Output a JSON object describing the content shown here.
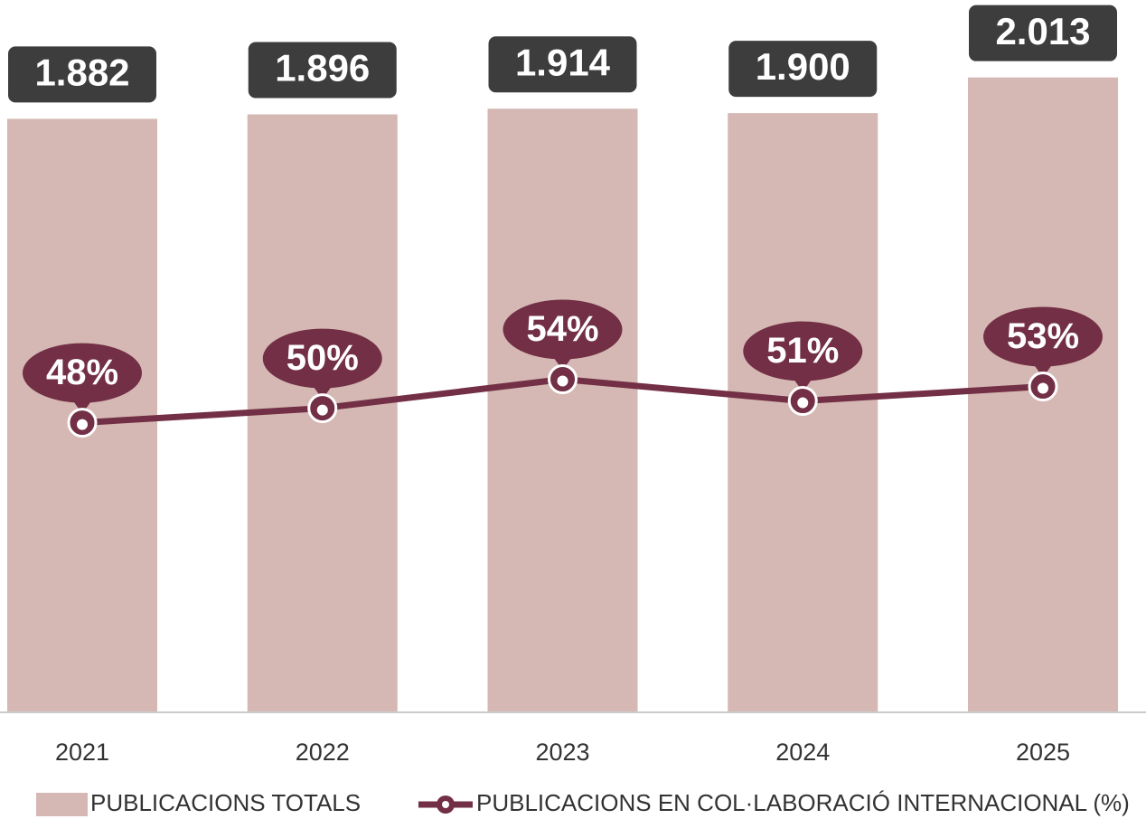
{
  "chart_data": {
    "type": "bar+line",
    "categories": [
      "2021",
      "2022",
      "2023",
      "2024",
      "2025"
    ],
    "ylim": [
      0,
      2250
    ],
    "y2lim": [
      8,
      106
    ],
    "series": [
      {
        "name": "PUBLICACIONS TOTALS",
        "type": "bar",
        "color": "#d5b8b3",
        "values": [
          1882,
          1896,
          1914,
          1900,
          2013
        ],
        "value_labels": [
          "1.882",
          "1.896",
          "1.914",
          "1.900",
          "2.013"
        ]
      },
      {
        "name": "PUBLICACIONS EN COL·LABORACIÓ INTERNACIONAL (%)",
        "type": "line",
        "axis": "y2",
        "color": "#722f45",
        "values": [
          48,
          50,
          54,
          51,
          53
        ],
        "value_labels": [
          "48%",
          "50%",
          "54%",
          "51%",
          "53%"
        ]
      }
    ]
  }
}
